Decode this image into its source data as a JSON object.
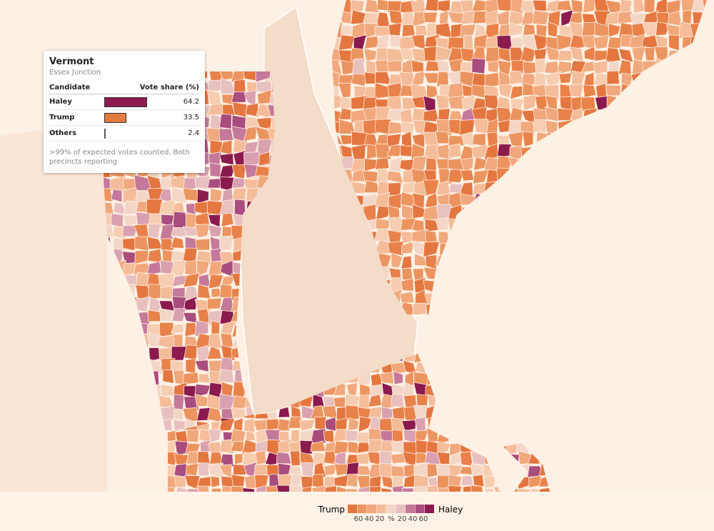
{
  "tooltip": {
    "title": "Vermont",
    "subtitle": "Essex Junction",
    "header": [
      "Candidate",
      "Vote share (%)"
    ],
    "rows": [
      {
        "name": "Haley",
        "value": 64.2,
        "color": "#8b1a4f"
      },
      {
        "name": "Trump",
        "value": 33.5,
        "color": "#e07a3f"
      },
      {
        "name": "Others",
        "value": 2.4,
        "color": "#555555"
      }
    ],
    "note": ">99% of expected votes counted. Both precincts reporting"
  },
  "legend": {
    "left": "Trump",
    "right": "Haley",
    "unit": "%",
    "trump_ticks": [
      60,
      40,
      20
    ],
    "haley_ticks": [
      20,
      40,
      60
    ]
  }
}
